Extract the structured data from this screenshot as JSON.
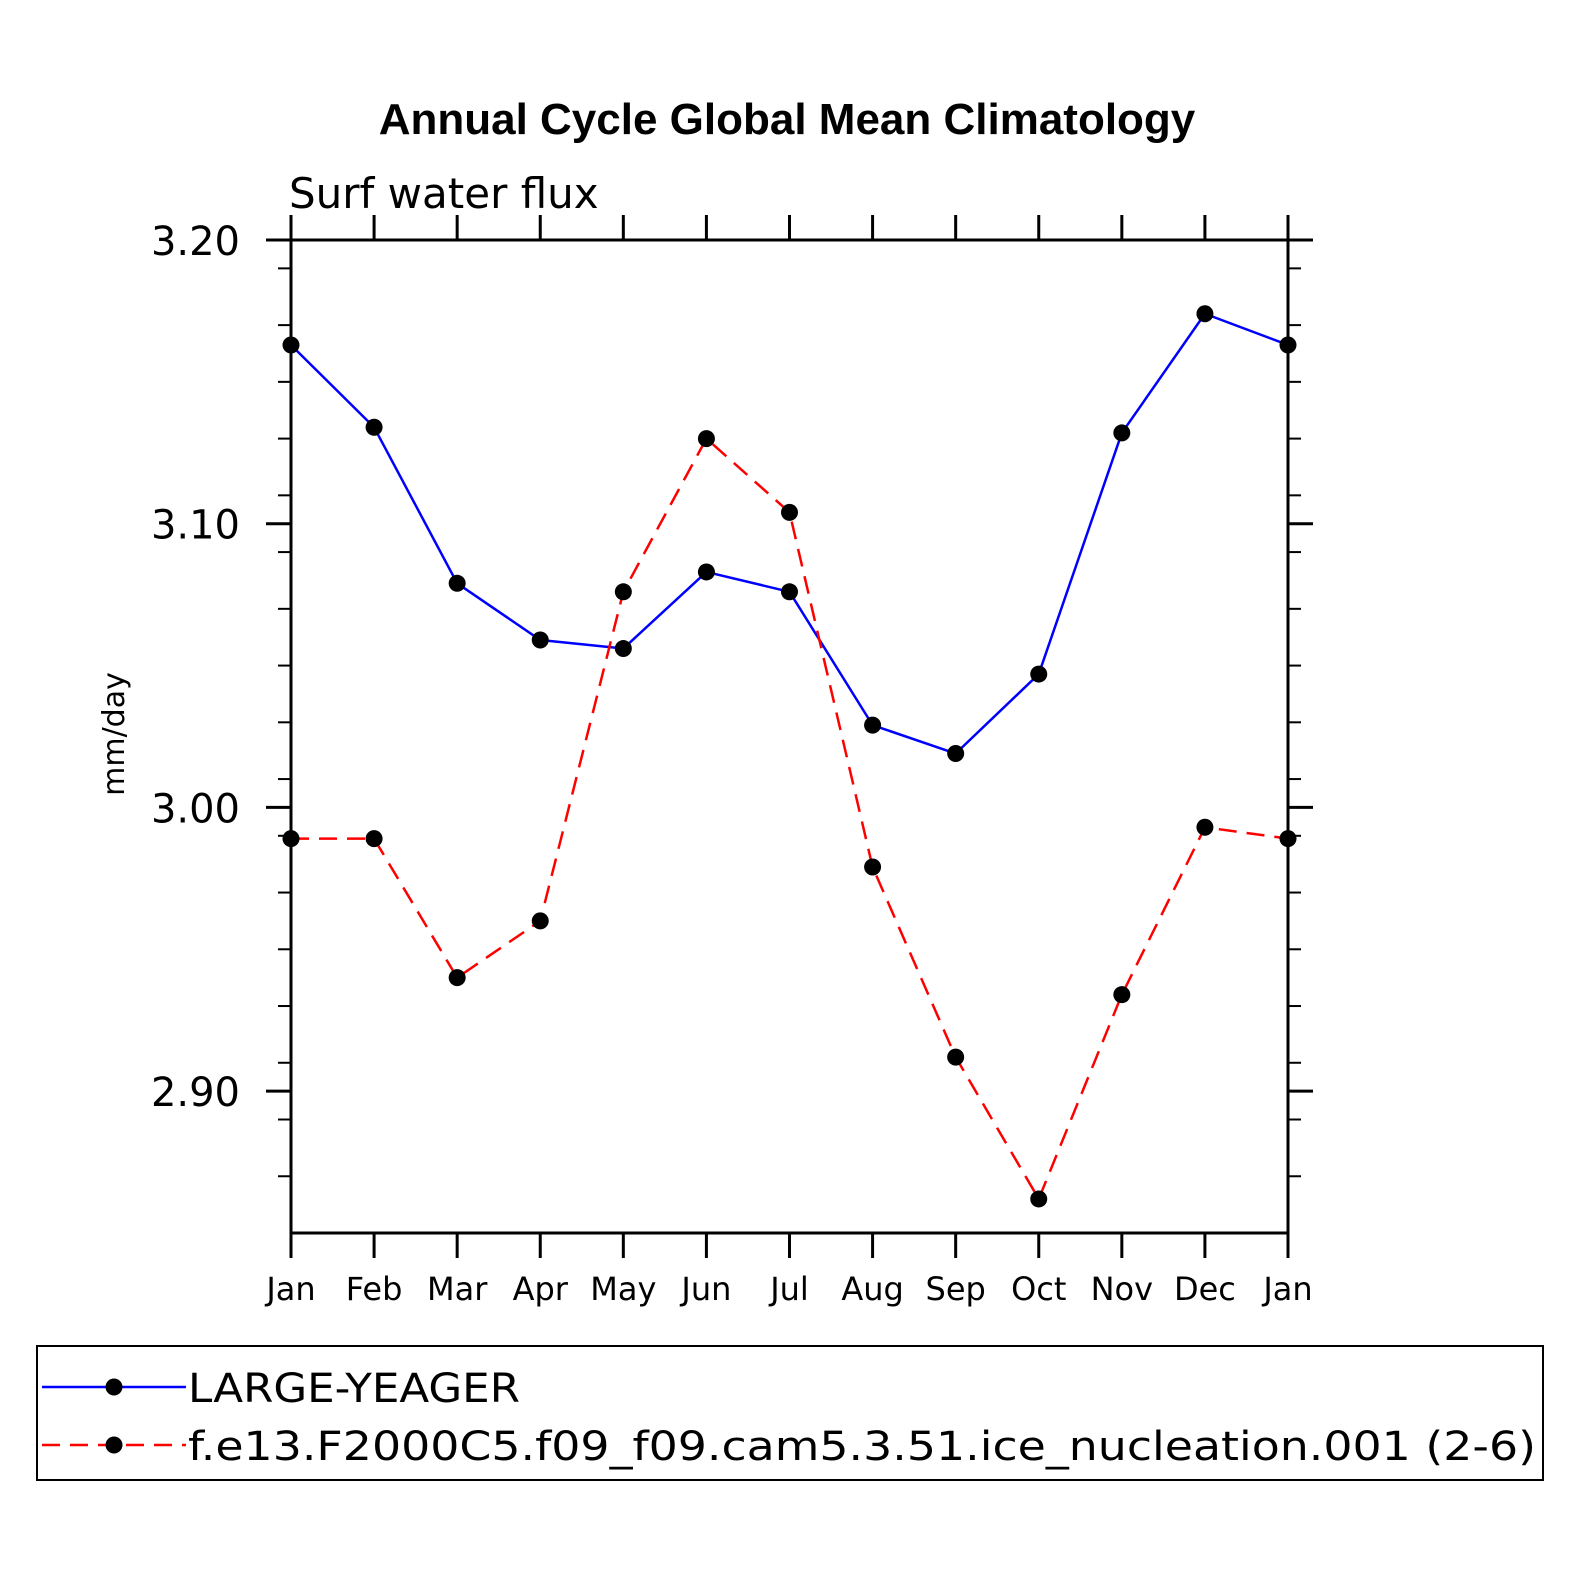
{
  "chart_data": {
    "type": "line",
    "title": "Annual Cycle Global Mean Climatology",
    "subtitle": "Surf water flux",
    "xlabel": "",
    "ylabel": "mm/day",
    "categories": [
      "Jan",
      "Feb",
      "Mar",
      "Apr",
      "May",
      "Jun",
      "Jul",
      "Aug",
      "Sep",
      "Oct",
      "Nov",
      "Dec",
      "Jan"
    ],
    "ylim": [
      2.85,
      3.2
    ],
    "yticks": [
      {
        "value": 2.9,
        "label": "2.90"
      },
      {
        "value": 3.0,
        "label": "3.00"
      },
      {
        "value": 3.1,
        "label": "3.10"
      },
      {
        "value": 3.2,
        "label": "3.20"
      }
    ],
    "y_minor_step": 0.02,
    "grid": false,
    "legend": "bottom",
    "series": [
      {
        "name": "LARGE-YEAGER",
        "color": "#0000ff",
        "dash": "solid",
        "marker": "filled-circle",
        "values": [
          3.163,
          3.134,
          3.079,
          3.059,
          3.056,
          3.083,
          3.076,
          3.029,
          3.019,
          3.047,
          3.132,
          3.174,
          3.163
        ]
      },
      {
        "name": "f.e13.F2000C5.f09_f09.cam5.3.51.ice_nucleation.001 (2-6)",
        "color": "#ff0000",
        "dash": "dashed",
        "marker": "filled-circle",
        "values": [
          2.989,
          2.989,
          2.94,
          2.96,
          3.076,
          3.13,
          3.104,
          2.979,
          2.912,
          2.862,
          2.934,
          2.993,
          2.989
        ]
      }
    ]
  }
}
